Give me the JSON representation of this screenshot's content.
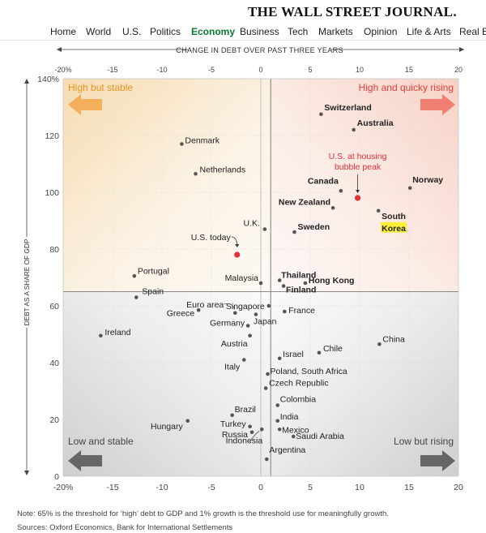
{
  "masthead": {
    "title": "THE WALL STREET JOURNAL."
  },
  "nav": {
    "items": [
      {
        "label": "Home",
        "active": false
      },
      {
        "label": "World",
        "active": false
      },
      {
        "label": "U.S.",
        "active": false
      },
      {
        "label": "Politics",
        "active": false
      },
      {
        "label": "Economy",
        "active": true
      },
      {
        "label": "Business",
        "active": false
      },
      {
        "label": "Tech",
        "active": false
      },
      {
        "label": "Markets",
        "active": false
      },
      {
        "label": "Opinion",
        "active": false
      },
      {
        "label": "Life & Arts",
        "active": false
      },
      {
        "label": "Real Es",
        "active": false
      }
    ]
  },
  "chart_data": {
    "type": "scatter",
    "title": "",
    "xlabel": "CHANGE IN DEBT OVER PAST THREE YEARS",
    "ylabel": "DEBT AS A SHARE OF GDP",
    "xlim": [
      -20,
      20
    ],
    "ylim": [
      0,
      140
    ],
    "x_ticks_top": [
      "-20%",
      "-15",
      "-10",
      "-5",
      "0",
      "5",
      "10",
      "15",
      "20"
    ],
    "x_ticks_bottom": [
      "-20%",
      "-15",
      "-10",
      "-5",
      "0",
      "5",
      "10",
      "15",
      "20"
    ],
    "y_ticks": [
      "0",
      "20",
      "40",
      "60",
      "80",
      "100",
      "120",
      "140%"
    ],
    "y_tick_values": [
      0,
      20,
      40,
      60,
      80,
      100,
      120,
      140
    ],
    "x_tick_values": [
      -20,
      -15,
      -10,
      -5,
      0,
      5,
      10,
      15,
      20
    ],
    "threshold_x": 1,
    "threshold_y": 65,
    "quadrants": [
      {
        "label": "High but stable",
        "color": "#e8941f",
        "position": "top-left"
      },
      {
        "label": "High and quicky rising",
        "color": "#e0403a",
        "position": "top-right"
      },
      {
        "label": "Low and stable",
        "color": "#555555",
        "position": "bottom-left"
      },
      {
        "label": "Low but rising",
        "color": "#555555",
        "position": "bottom-right"
      }
    ],
    "series": [
      {
        "name": "",
        "points": [
          {
            "label": "Switzerland",
            "x": 6.1,
            "y": 127.5,
            "bold": true
          },
          {
            "label": "Australia",
            "x": 9.4,
            "y": 122,
            "bold": true
          },
          {
            "label": "Denmark",
            "x": -8,
            "y": 117,
            "bold": false
          },
          {
            "label": "Netherlands",
            "x": -6.6,
            "y": 106.5,
            "bold": false
          },
          {
            "label": "Canada",
            "x": 8.1,
            "y": 100.5,
            "bold": true
          },
          {
            "label": "Norway",
            "x": 15.1,
            "y": 101.5,
            "bold": true
          },
          {
            "label": "New Zealand",
            "x": 7.3,
            "y": 94.5,
            "bold": true
          },
          {
            "label": "South Korea",
            "x": 11.9,
            "y": 93.5,
            "bold": true
          },
          {
            "label": "U.K.",
            "x": 0.4,
            "y": 87,
            "bold": false
          },
          {
            "label": "Sweden",
            "x": 3.4,
            "y": 86,
            "bold": true
          },
          {
            "label": "Portugal",
            "x": -12.8,
            "y": 70.5,
            "bold": false
          },
          {
            "label": "Thailand",
            "x": 1.9,
            "y": 69,
            "bold": true
          },
          {
            "label": "Hong Kong",
            "x": 4.5,
            "y": 68,
            "bold": true
          },
          {
            "label": "Finland",
            "x": 2.3,
            "y": 67,
            "bold": true
          },
          {
            "label": "Malaysia",
            "x": 0,
            "y": 68,
            "bold": false
          },
          {
            "label": "Spain",
            "x": -12.6,
            "y": 63,
            "bold": false
          },
          {
            "label": "Singapore",
            "x": 0.8,
            "y": 60,
            "bold": false
          },
          {
            "label": "France",
            "x": 2.4,
            "y": 58,
            "bold": false
          },
          {
            "label": "Euro area",
            "x": -2.6,
            "y": 57.5,
            "bold": false
          },
          {
            "label": "Greece",
            "x": -6.3,
            "y": 58.5,
            "bold": false
          },
          {
            "label": "Japan",
            "x": -0.5,
            "y": 57,
            "bold": false
          },
          {
            "label": "Germany",
            "x": -1.3,
            "y": 53,
            "bold": false
          },
          {
            "label": "Ireland",
            "x": -16.2,
            "y": 49.5,
            "bold": false
          },
          {
            "label": "Austria",
            "x": -1.1,
            "y": 49.5,
            "bold": false
          },
          {
            "label": "China",
            "x": 12,
            "y": 46.5,
            "bold": false
          },
          {
            "label": "Chile",
            "x": 5.9,
            "y": 43.5,
            "bold": false
          },
          {
            "label": "Israel",
            "x": 1.9,
            "y": 41.5,
            "bold": false
          },
          {
            "label": "Italy",
            "x": -1.7,
            "y": 41,
            "bold": false
          },
          {
            "label": "Poland, South Africa",
            "x": 0.7,
            "y": 36,
            "bold": false
          },
          {
            "label": "Czech Republic",
            "x": 0.5,
            "y": 31,
            "bold": false
          },
          {
            "label": "Colombia",
            "x": 1.7,
            "y": 25,
            "bold": false
          },
          {
            "label": "Brazil",
            "x": -2.9,
            "y": 21.5,
            "bold": false
          },
          {
            "label": "India",
            "x": 1.7,
            "y": 19.5,
            "bold": false
          },
          {
            "label": "Hungary",
            "x": -7.4,
            "y": 19.5,
            "bold": false
          },
          {
            "label": "Turkey",
            "x": -1.1,
            "y": 17.5,
            "bold": false
          },
          {
            "label": "Mexico",
            "x": 1.9,
            "y": 16.5,
            "bold": false
          },
          {
            "label": "Russia",
            "x": -0.9,
            "y": 15.5,
            "bold": false
          },
          {
            "label": "Indonesia",
            "x": 0.1,
            "y": 16.5,
            "bold": false
          },
          {
            "label": "Saudi Arabia",
            "x": 3.3,
            "y": 14,
            "bold": false
          },
          {
            "label": "Argentina",
            "x": 0.6,
            "y": 6,
            "bold": false
          }
        ]
      },
      {
        "name": "",
        "color": "#e0303a",
        "points": [
          {
            "label": "U.S. at housing bubble peak",
            "x": 9.8,
            "y": 98
          },
          {
            "label": "U.S. today",
            "x": -2.4,
            "y": 78
          }
        ]
      }
    ],
    "highlight": {
      "word": "Korea",
      "color": "#ffef3a"
    }
  },
  "footer": {
    "note": "Note: 65% is the threshold for ‘high’ debt to GDP and 1% growth is the threshold use for meaningfully growth.",
    "sources": "Sources: Oxford Economics, Bank for International Settlements"
  }
}
